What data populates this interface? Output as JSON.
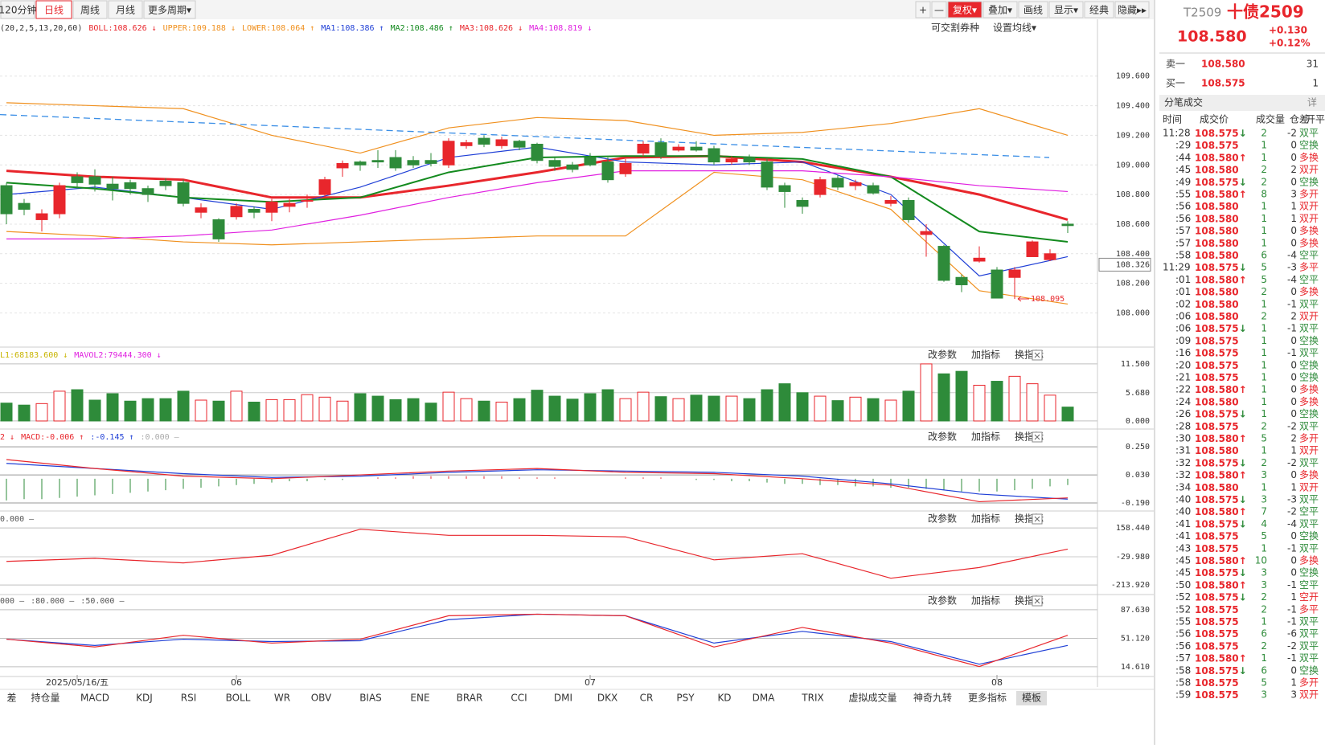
{
  "toolbar": {
    "tabs": [
      "120分钟",
      "日线",
      "周线",
      "月线",
      "更多周期▾"
    ],
    "active": 1,
    "buttons": [
      "+",
      "—",
      "复权▾",
      "叠加▾",
      "画线",
      "显示▾",
      "经典",
      "隐藏▸▸"
    ]
  },
  "main_header": {
    "items": [
      {
        "text": "(20,2,5,13,20,60)",
        "color": "#333"
      },
      {
        "text": "BOLL:108.626 ↓",
        "color": "#e8262c"
      },
      {
        "text": "UPPER:109.188 ↓",
        "color": "#f0901e"
      },
      {
        "text": "LOWER:108.064 ↑",
        "color": "#f0901e"
      },
      {
        "text": "MA1:108.386 ↑",
        "color": "#1f3fd6"
      },
      {
        "text": "MA2:108.486 ↑",
        "color": "#138a1e"
      },
      {
        "text": "MA3:108.626 ↓",
        "color": "#e8262c"
      },
      {
        "text": "MA4:108.819 ↓",
        "color": "#e020e0"
      }
    ],
    "right": [
      "可交割券种",
      "设置均线▾"
    ]
  },
  "chart_data": {
    "type": "candlestick",
    "up_color": "#e8262c",
    "down_color": "#2e8b3a",
    "ylim": [
      107.78,
      109.87
    ],
    "yticks": [
      {
        "value": 109.6,
        "label": "109.600"
      },
      {
        "value": 109.4,
        "label": "109.400"
      },
      {
        "value": 109.2,
        "label": "109.200"
      },
      {
        "value": 109.0,
        "label": "109.000"
      },
      {
        "value": 108.8,
        "label": "108.800"
      },
      {
        "value": 108.6,
        "label": "108.600"
      },
      {
        "value": 108.4,
        "label": "108.400"
      },
      {
        "value": 108.2,
        "label": "108.200"
      },
      {
        "value": 108.0,
        "label": "108.000"
      }
    ],
    "grid": true,
    "ohlc": [
      [
        108.86,
        108.88,
        108.6,
        108.67
      ],
      [
        108.74,
        108.77,
        108.66,
        108.7
      ],
      [
        108.63,
        108.7,
        108.55,
        108.67
      ],
      [
        108.67,
        108.88,
        108.64,
        108.86
      ],
      [
        108.92,
        108.95,
        108.84,
        108.88
      ],
      [
        108.92,
        108.97,
        108.82,
        108.87
      ],
      [
        108.87,
        108.92,
        108.76,
        108.84
      ],
      [
        108.88,
        108.9,
        108.8,
        108.84
      ],
      [
        108.84,
        108.86,
        108.75,
        108.8
      ],
      [
        108.89,
        108.91,
        108.83,
        108.86
      ],
      [
        108.88,
        108.9,
        108.72,
        108.74
      ],
      [
        108.68,
        108.74,
        108.64,
        108.71
      ],
      [
        108.63,
        108.64,
        108.48,
        108.5
      ],
      [
        108.65,
        108.74,
        108.63,
        108.72
      ],
      [
        108.7,
        108.72,
        108.64,
        108.68
      ],
      [
        108.68,
        108.77,
        108.62,
        108.75
      ],
      [
        108.72,
        108.77,
        108.68,
        108.74
      ],
      [
        108.76,
        108.8,
        108.71,
        108.76
      ],
      [
        108.8,
        108.92,
        108.78,
        108.9
      ],
      [
        108.98,
        109.03,
        108.92,
        109.01
      ],
      [
        109.02,
        109.03,
        108.96,
        109.0
      ],
      [
        109.03,
        109.1,
        108.98,
        109.02
      ],
      [
        109.05,
        109.1,
        108.96,
        108.98
      ],
      [
        109.03,
        109.06,
        108.98,
        109.0
      ],
      [
        109.03,
        109.08,
        108.99,
        109.01
      ],
      [
        109.0,
        109.18,
        108.98,
        109.16
      ],
      [
        109.13,
        109.17,
        109.11,
        109.15
      ],
      [
        109.18,
        109.2,
        109.12,
        109.14
      ],
      [
        109.13,
        109.19,
        109.11,
        109.17
      ],
      [
        109.16,
        109.17,
        109.1,
        109.12
      ],
      [
        109.14,
        109.15,
        109.01,
        109.03
      ],
      [
        109.03,
        109.05,
        108.96,
        108.99
      ],
      [
        109.0,
        109.02,
        108.95,
        108.97
      ],
      [
        109.05,
        109.08,
        108.99,
        109.0
      ],
      [
        109.02,
        109.05,
        108.88,
        108.9
      ],
      [
        108.94,
        109.04,
        108.92,
        109.01
      ],
      [
        109.08,
        109.16,
        109.06,
        109.14
      ],
      [
        109.15,
        109.18,
        109.04,
        109.06
      ],
      [
        109.1,
        109.14,
        109.09,
        109.12
      ],
      [
        109.12,
        109.16,
        109.09,
        109.1
      ],
      [
        109.11,
        109.13,
        109.0,
        109.02
      ],
      [
        109.02,
        109.06,
        109.0,
        109.04
      ],
      [
        109.05,
        109.07,
        109.0,
        109.02
      ],
      [
        109.02,
        109.04,
        108.83,
        108.85
      ],
      [
        108.86,
        108.88,
        108.71,
        108.82
      ],
      [
        108.76,
        108.78,
        108.67,
        108.72
      ],
      [
        108.8,
        108.92,
        108.78,
        108.9
      ],
      [
        108.91,
        108.93,
        108.83,
        108.85
      ],
      [
        108.86,
        108.9,
        108.83,
        108.88
      ],
      [
        108.86,
        108.88,
        108.8,
        108.81
      ],
      [
        108.74,
        108.79,
        108.72,
        108.76
      ],
      [
        108.76,
        108.78,
        108.61,
        108.63
      ],
      [
        108.53,
        108.6,
        108.38,
        108.55
      ],
      [
        108.45,
        108.46,
        108.21,
        108.22
      ],
      [
        108.24,
        108.26,
        108.14,
        108.19
      ],
      [
        108.35,
        108.45,
        108.34,
        108.37
      ],
      [
        108.29,
        108.31,
        108.1,
        108.1
      ],
      [
        108.24,
        108.31,
        108.095,
        108.29
      ],
      [
        108.38,
        108.49,
        108.38,
        108.48
      ],
      [
        108.36,
        108.43,
        108.35,
        108.4
      ],
      [
        108.6,
        108.62,
        108.54,
        108.59
      ]
    ],
    "line_index": [
      0,
      5,
      10,
      15,
      20,
      25,
      30,
      35,
      40,
      45,
      50,
      55,
      60
    ],
    "lines": [
      {
        "color": "#f0901e",
        "values": [
          109.42,
          109.4,
          109.38,
          109.2,
          109.08,
          109.25,
          109.32,
          109.3,
          109.2,
          109.22,
          109.28,
          109.38,
          109.2
        ]
      },
      {
        "color": "#f0901e",
        "values": [
          108.55,
          108.52,
          108.48,
          108.46,
          108.48,
          108.5,
          108.52,
          108.52,
          108.95,
          108.9,
          108.7,
          108.15,
          108.06
        ]
      },
      {
        "color": "#e8262c",
        "width": 3,
        "values": [
          108.96,
          108.92,
          108.9,
          108.78,
          108.78,
          108.86,
          108.95,
          109.05,
          109.06,
          109.02,
          108.92,
          108.8,
          108.63
        ]
      },
      {
        "color": "#1f3fd6",
        "values": [
          108.8,
          108.85,
          108.78,
          108.7,
          108.85,
          109.05,
          109.12,
          109.02,
          109.0,
          109.02,
          108.8,
          108.25,
          108.38
        ]
      },
      {
        "color": "#138a1e",
        "width": 2,
        "values": [
          108.88,
          108.84,
          108.78,
          108.75,
          108.78,
          108.95,
          109.05,
          109.06,
          109.06,
          109.04,
          108.92,
          108.55,
          108.48
        ]
      },
      {
        "color": "#e020e0",
        "values": [
          108.5,
          108.5,
          108.52,
          108.56,
          108.66,
          108.78,
          108.88,
          108.96,
          108.96,
          108.96,
          108.92,
          108.86,
          108.82
        ]
      }
    ],
    "trendline": [
      109.34,
      109.05
    ],
    "marker": {
      "value": 108.326,
      "label": "108.326"
    },
    "low_label": {
      "index": 57,
      "value": 108.095,
      "label": "108.095"
    },
    "x_labels": [
      {
        "index": 4,
        "label": "2025/05/16/五"
      },
      {
        "index": 13,
        "label": "06"
      },
      {
        "index": 33,
        "label": "07"
      },
      {
        "index": 56,
        "label": "08"
      }
    ]
  },
  "pane_buttons": [
    "改参数",
    "加指标",
    "换指标"
  ],
  "volume": {
    "header": [
      {
        "text": "L1:68183.600 ↓",
        "color": "#c8b400"
      },
      {
        "text": "MAVOL2:79444.300 ↓",
        "color": "#e020e0"
      }
    ],
    "ylim": [
      -1.3,
      14.4
    ],
    "yticks": [
      {
        "value": 11.5,
        "label": "11.500"
      },
      {
        "value": 5.68,
        "label": "5.680"
      },
      {
        "value": 0,
        "label": "0.000"
      }
    ],
    "values": [
      3.6,
      3.2,
      3.5,
      6.0,
      6.3,
      4.2,
      5.5,
      4.0,
      4.5,
      4.5,
      6.0,
      4.2,
      4.0,
      6.0,
      3.8,
      4.3,
      4.3,
      5.3,
      4.8,
      4.0,
      5.5,
      5.0,
      4.3,
      4.5,
      3.6,
      5.8,
      4.5,
      4.0,
      3.8,
      4.5,
      6.2,
      5.0,
      4.4,
      5.5,
      6.3,
      4.5,
      5.8,
      4.9,
      4.5,
      5.2,
      5.0,
      5.0,
      4.5,
      6.3,
      7.5,
      5.7,
      5.0,
      4.1,
      4.8,
      4.5,
      4.2,
      6.0,
      11.5,
      9.5,
      10.0,
      7.2,
      8.0,
      9.0,
      7.5,
      5.2,
      2.8
    ]
  },
  "macd": {
    "header": [
      {
        "text": "2 ↓",
        "color": "#e8262c"
      },
      {
        "text": "MACD:-0.006 ↑",
        "color": "#e8262c"
      },
      {
        "text": ":-0.145 ↑",
        "color": "#1f3fd6"
      },
      {
        "text": ":0.000 —",
        "color": "#aaa"
      }
    ],
    "ylim": [
      -0.24,
      0.37
    ],
    "yticks": [
      {
        "value": 0.25,
        "label": "0.250"
      },
      {
        "value": 0.03,
        "label": "0.030"
      },
      {
        "value": -0.19,
        "label": "-0.190"
      }
    ],
    "hist": [
      -0.17,
      -0.16,
      -0.16,
      -0.15,
      -0.14,
      -0.13,
      -0.12,
      -0.11,
      -0.1,
      -0.09,
      -0.08,
      -0.07,
      -0.06,
      -0.05,
      -0.04,
      -0.03,
      -0.02,
      -0.02,
      -0.01,
      -0.01,
      0.0,
      0.01,
      0.01,
      0.02,
      0.02,
      0.02,
      0.02,
      0.02,
      0.02,
      0.01,
      0.01,
      0.01,
      0.0,
      0.0,
      0.0,
      0.01,
      0.01,
      0.01,
      0.0,
      -0.01,
      -0.01,
      -0.02,
      -0.02,
      -0.03,
      -0.04,
      -0.04,
      -0.05,
      -0.05,
      -0.06,
      -0.06,
      -0.07,
      -0.07,
      -0.08,
      -0.09,
      -0.1,
      -0.1,
      -0.1,
      -0.09,
      -0.08,
      -0.06,
      -0.05
    ],
    "lines": [
      {
        "color": "#1f3fd6",
        "values": [
          0.12,
          0.08,
          0.04,
          0.01,
          0.02,
          0.05,
          0.07,
          0.06,
          0.05,
          0.02,
          -0.04,
          -0.12,
          -0.16
        ]
      },
      {
        "color": "#e8262c",
        "values": [
          0.15,
          0.08,
          0.02,
          0.0,
          0.03,
          0.06,
          0.08,
          0.05,
          0.04,
          0.0,
          -0.05,
          -0.18,
          -0.15
        ]
      }
    ]
  },
  "cci": {
    "header": [
      {
        "text": "0.000 —",
        "color": "#555"
      }
    ],
    "ylim": [
      -266,
      248
    ],
    "yticks": [
      {
        "value": 158.44,
        "label": "158.440"
      },
      {
        "value": -29.98,
        "label": "-29.980"
      },
      {
        "value": -213.92,
        "label": "-213.920"
      }
    ],
    "lines": [
      {
        "color": "#e8262c",
        "values": [
          -60,
          -40,
          -70,
          -20,
          150,
          110,
          110,
          100,
          -50,
          -10,
          -170,
          -100,
          20
        ]
      }
    ]
  },
  "kdj": {
    "header": [
      {
        "text": "000 —",
        "color": "#555"
      },
      {
        "text": ":80.000 —",
        "color": "#555"
      },
      {
        "text": ":50.000 —",
        "color": "#555"
      }
    ],
    "ylim": [
      4.3,
      106.1
    ],
    "yticks": [
      {
        "value": 87.63,
        "label": "87.630"
      },
      {
        "value": 51.12,
        "label": "51.120"
      },
      {
        "value": 14.61,
        "label": "14.610"
      }
    ],
    "lines": [
      {
        "color": "#1f3fd6",
        "values": [
          50,
          42,
          50,
          47,
          48,
          75,
          82,
          80,
          45,
          60,
          47,
          18,
          42
        ]
      },
      {
        "color": "#e8262c",
        "values": [
          50,
          40,
          55,
          45,
          50,
          80,
          82,
          80,
          40,
          65,
          45,
          15,
          55
        ]
      }
    ]
  },
  "bottom_tabs": [
    "差",
    "持仓量",
    "MACD",
    "KDJ",
    "RSI",
    "BOLL",
    "WR",
    "OBV",
    "BIAS",
    "ENE",
    "BRAR",
    "CCI",
    "DMI",
    "DKX",
    "CR",
    "PSY",
    "KD",
    "DMA",
    "TRIX",
    "虚拟成交量",
    "神奇九转",
    "更多指标",
    "模板"
  ],
  "quote": {
    "code": "T2509",
    "name": "十债2509",
    "price": "108.580",
    "change": "+0.130",
    "pct": "+0.12%",
    "sell_label": "卖一",
    "sell_price": "108.580",
    "sell_vol": "31",
    "buy_label": "买一",
    "buy_price": "108.575",
    "buy_vol": "1",
    "ticks_title": "分笔成交",
    "detail": "详",
    "columns": [
      "时间",
      "成交价",
      "成交量",
      "仓差",
      "开平"
    ],
    "rows": [
      [
        "11:28",
        "108.575",
        "↓",
        "2",
        "-2",
        "双平"
      ],
      [
        ":29",
        "108.575",
        "1",
        "0",
        "空换"
      ],
      [
        ":44",
        "108.580",
        "↑",
        "1",
        "0",
        "多换"
      ],
      [
        ":45",
        "108.580",
        "2",
        "2",
        "双开"
      ],
      [
        ":49",
        "108.575",
        "↓",
        "2",
        "0",
        "空换"
      ],
      [
        ":55",
        "108.580",
        "↑",
        "8",
        "3",
        "多开"
      ],
      [
        ":56",
        "108.580",
        "1",
        "1",
        "双开"
      ],
      [
        ":56",
        "108.580",
        "1",
        "1",
        "双开"
      ],
      [
        ":57",
        "108.580",
        "1",
        "0",
        "多换"
      ],
      [
        ":57",
        "108.580",
        "1",
        "0",
        "多换"
      ],
      [
        ":58",
        "108.580",
        "6",
        "-4",
        "空平"
      ],
      [
        "11:29",
        "108.575",
        "↓",
        "5",
        "-3",
        "多平"
      ],
      [
        ":01",
        "108.580",
        "↑",
        "5",
        "-4",
        "空平"
      ],
      [
        ":01",
        "108.580",
        "2",
        "0",
        "多换"
      ],
      [
        ":02",
        "108.580",
        "1",
        "-1",
        "双平"
      ],
      [
        ":06",
        "108.580",
        "2",
        "2",
        "双开"
      ],
      [
        ":06",
        "108.575",
        "↓",
        "1",
        "-1",
        "双平"
      ],
      [
        ":09",
        "108.575",
        "1",
        "0",
        "空换"
      ],
      [
        ":16",
        "108.575",
        "1",
        "-1",
        "双平"
      ],
      [
        ":20",
        "108.575",
        "1",
        "0",
        "空换"
      ],
      [
        ":21",
        "108.575",
        "1",
        "0",
        "空换"
      ],
      [
        ":22",
        "108.580",
        "↑",
        "1",
        "0",
        "多换"
      ],
      [
        ":24",
        "108.580",
        "1",
        "0",
        "多换"
      ],
      [
        ":26",
        "108.575",
        "↓",
        "1",
        "0",
        "空换"
      ],
      [
        ":28",
        "108.575",
        "2",
        "-2",
        "双平"
      ],
      [
        ":30",
        "108.580",
        "↑",
        "5",
        "2",
        "多开"
      ],
      [
        ":31",
        "108.580",
        "1",
        "1",
        "双开"
      ],
      [
        ":32",
        "108.575",
        "↓",
        "2",
        "-2",
        "双平"
      ],
      [
        ":32",
        "108.580",
        "↑",
        "3",
        "0",
        "多换"
      ],
      [
        ":34",
        "108.580",
        "1",
        "1",
        "双开"
      ],
      [
        ":40",
        "108.575",
        "↓",
        "3",
        "-3",
        "双平"
      ],
      [
        ":40",
        "108.580",
        "↑",
        "7",
        "-2",
        "空平"
      ],
      [
        ":41",
        "108.575",
        "↓",
        "4",
        "-4",
        "双平"
      ],
      [
        ":41",
        "108.575",
        "5",
        "0",
        "空换"
      ],
      [
        ":43",
        "108.575",
        "1",
        "-1",
        "双平"
      ],
      [
        ":45",
        "108.580",
        "↑",
        "10",
        "0",
        "多换"
      ],
      [
        ":45",
        "108.575",
        "↓",
        "3",
        "0",
        "空换"
      ],
      [
        ":50",
        "108.580",
        "↑",
        "3",
        "-1",
        "空平"
      ],
      [
        ":52",
        "108.575",
        "↓",
        "2",
        "1",
        "空开"
      ],
      [
        ":52",
        "108.575",
        "2",
        "-1",
        "多平"
      ],
      [
        ":55",
        "108.575",
        "1",
        "-1",
        "双平"
      ],
      [
        ":56",
        "108.575",
        "6",
        "-6",
        "双平"
      ],
      [
        ":56",
        "108.575",
        "2",
        "-2",
        "双平"
      ],
      [
        ":57",
        "108.580",
        "↑",
        "1",
        "-1",
        "双平"
      ],
      [
        ":58",
        "108.575",
        "↓",
        "6",
        "0",
        "空换"
      ],
      [
        ":58",
        "108.575",
        "5",
        "1",
        "多开"
      ],
      [
        ":59",
        "108.575",
        "3",
        "3",
        "双开"
      ]
    ]
  }
}
